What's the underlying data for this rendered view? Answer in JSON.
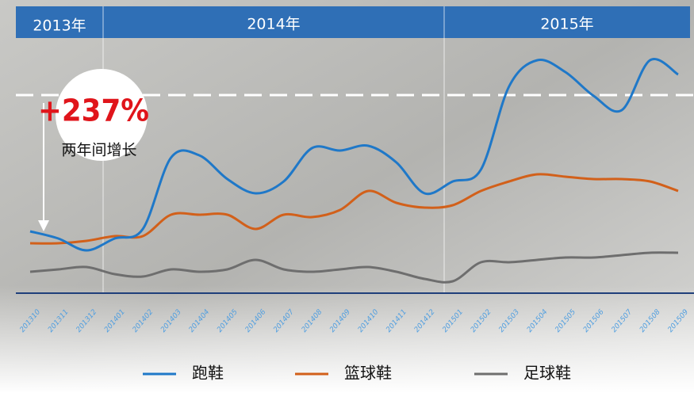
{
  "chart_data": {
    "type": "line",
    "year_bands": [
      "2013年",
      "2014年",
      "2015年"
    ],
    "annotation_value": "+237%",
    "annotation_text": "两年间增长",
    "categories": [
      "201310",
      "201311",
      "201312",
      "201401",
      "201402",
      "201403",
      "201404",
      "201405",
      "201406",
      "201407",
      "201408",
      "201409",
      "201410",
      "201411",
      "201412",
      "201501",
      "201502",
      "201503",
      "201504",
      "201505",
      "201506",
      "201507",
      "201508",
      "201509"
    ],
    "ylim": [
      0,
      100
    ],
    "series": [
      {
        "name": "跑鞋",
        "color": "#1f78c8",
        "values": [
          26,
          23,
          18,
          23,
          27,
          57,
          58,
          48,
          42,
          47,
          61,
          60,
          62,
          55,
          42,
          47,
          52,
          87,
          98,
          93,
          83,
          77,
          98,
          92
        ]
      },
      {
        "name": "篮球鞋",
        "color": "#d2601a",
        "values": [
          21,
          21,
          22,
          24,
          24,
          33,
          33,
          33,
          27,
          33,
          32,
          35,
          43,
          38,
          36,
          37,
          43,
          47,
          50,
          49,
          48,
          48,
          47,
          43
        ]
      },
      {
        "name": "足球鞋",
        "color": "#6e6e6e",
        "values": [
          9,
          10,
          11,
          8,
          7,
          10,
          9,
          10,
          14,
          10,
          9,
          10,
          11,
          9,
          6,
          5,
          13,
          13,
          14,
          15,
          15,
          16,
          17,
          17
        ]
      }
    ]
  }
}
